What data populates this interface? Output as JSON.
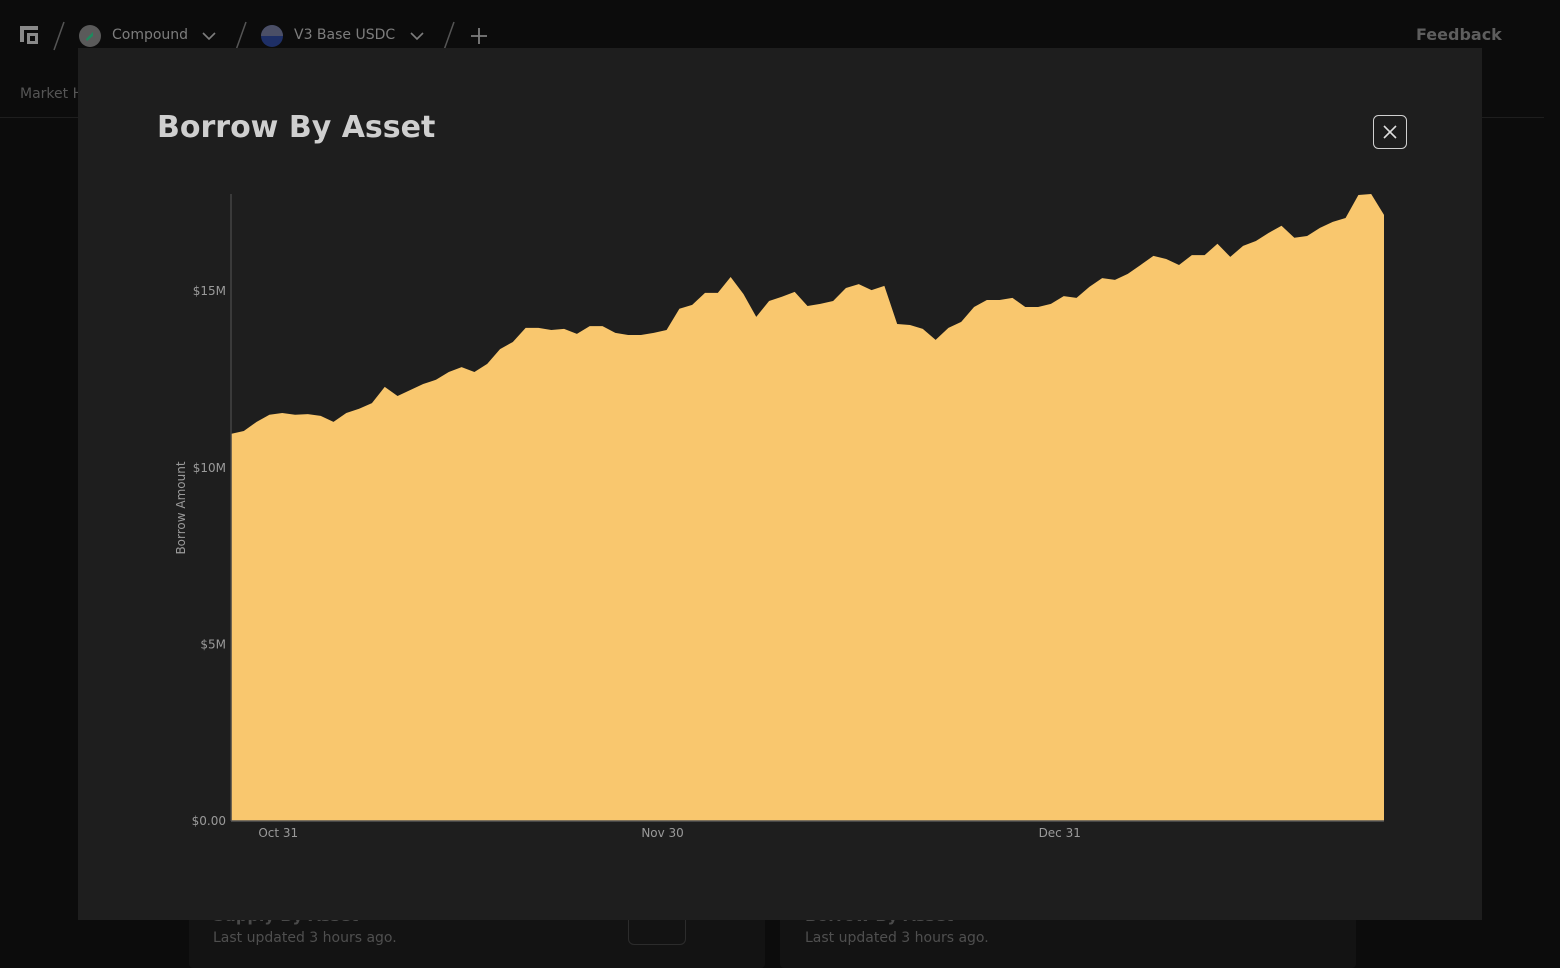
{
  "nav": {
    "protocol": "Compound",
    "market": "V3 Base USDC",
    "feedback": "Feedback",
    "tab": "Market H"
  },
  "cards": [
    {
      "title": "Supply By Asset",
      "updated": "Last updated 3 hours ago."
    },
    {
      "title": "Borrow By Asset",
      "updated": "Last updated 3 hours ago."
    }
  ],
  "chart_data": {
    "type": "area",
    "title": "Borrow By Asset",
    "y_label": "Borrow Amount",
    "categories": [
      null,
      null,
      null,
      null,
      "Oct 31",
      null,
      null,
      null,
      null,
      null,
      null,
      null,
      null,
      null,
      null,
      null,
      null,
      null,
      null,
      null,
      null,
      null,
      null,
      null,
      null,
      null,
      null,
      null,
      null,
      null,
      null,
      null,
      null,
      null,
      "Nov 30",
      null,
      null,
      null,
      null,
      null,
      null,
      null,
      null,
      null,
      null,
      null,
      null,
      null,
      null,
      null,
      null,
      null,
      null,
      null,
      null,
      null,
      null,
      null,
      null,
      null,
      null,
      null,
      null,
      null,
      null,
      "Dec 31",
      null,
      null,
      null,
      null,
      null,
      null,
      null,
      null,
      null,
      null,
      null,
      null,
      null,
      null,
      null,
      null,
      null,
      null,
      null,
      null,
      null,
      null,
      null,
      null,
      null
    ],
    "values": [
      10960000,
      11040000,
      11300000,
      11500000,
      11550000,
      11500000,
      11520000,
      11470000,
      11300000,
      11550000,
      11670000,
      11830000,
      12290000,
      12030000,
      12200000,
      12370000,
      12490000,
      12710000,
      12850000,
      12710000,
      12940000,
      13360000,
      13560000,
      13960000,
      13960000,
      13900000,
      13930000,
      13790000,
      14010000,
      14010000,
      13820000,
      13760000,
      13760000,
      13820000,
      13900000,
      14500000,
      14610000,
      14950000,
      14950000,
      15400000,
      14920000,
      14270000,
      14720000,
      14840000,
      14980000,
      14580000,
      14640000,
      14720000,
      15090000,
      15200000,
      15030000,
      15150000,
      14070000,
      14040000,
      13930000,
      13620000,
      13960000,
      14130000,
      14550000,
      14750000,
      14750000,
      14810000,
      14550000,
      14550000,
      14640000,
      14860000,
      14810000,
      15120000,
      15370000,
      15320000,
      15490000,
      15740000,
      16000000,
      15910000,
      15740000,
      16020000,
      16020000,
      16340000,
      15970000,
      16280000,
      16420000,
      16650000,
      16850000,
      16510000,
      16560000,
      16790000,
      16960000,
      17070000,
      17720000,
      17750000,
      17160000
    ],
    "color": "#f9c76e",
    "ylim": [
      0,
      17750000
    ],
    "yticks": [
      {
        "value": 0,
        "label": "$0.00"
      },
      {
        "value": 5000000,
        "label": "$5M"
      },
      {
        "value": 10000000,
        "label": "$10M"
      },
      {
        "value": 15000000,
        "label": "$15M"
      }
    ]
  }
}
